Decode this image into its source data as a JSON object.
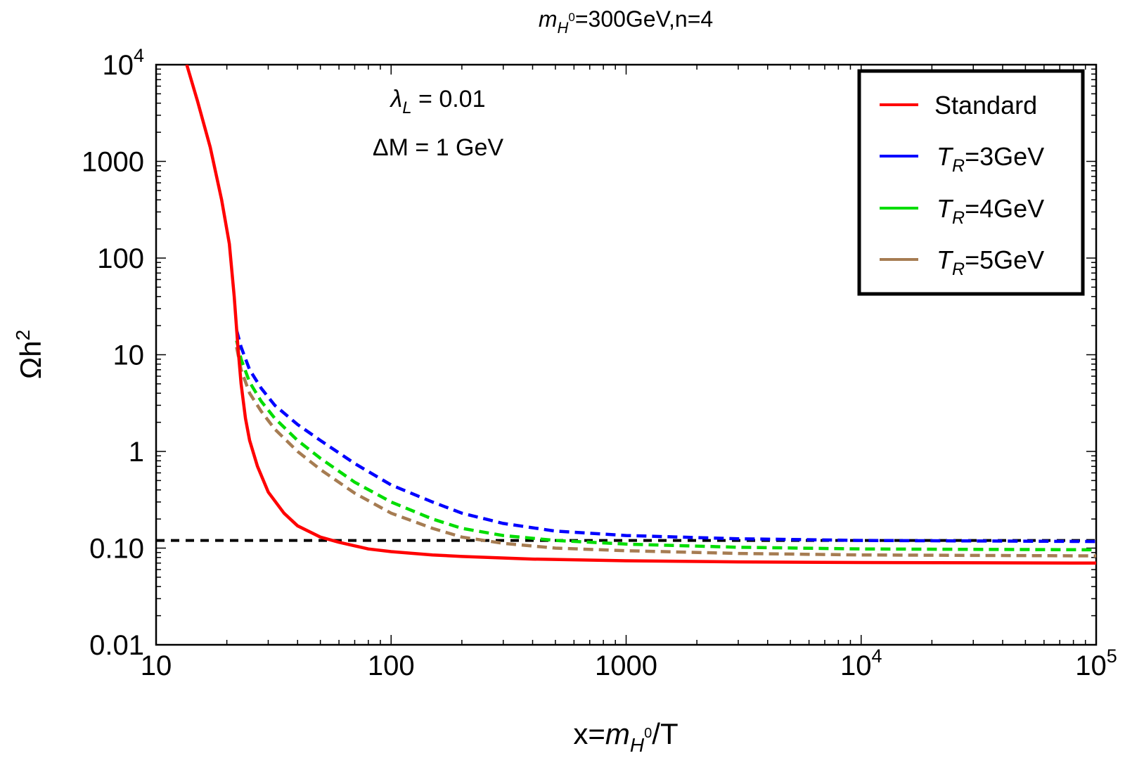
{
  "chart_data": {
    "type": "line",
    "title": {
      "prefix": "m",
      "sub": "H",
      "sup": "0",
      "rest": "=300GeV,n=4"
    },
    "xlabel": {
      "prefix": "x=",
      "m": "m",
      "sub": "H",
      "sup": "0",
      "rest": "/T"
    },
    "ylabel": {
      "base": "Ωh",
      "sup": "2"
    },
    "xscale": "log",
    "yscale": "log",
    "xlim": [
      10,
      100000
    ],
    "ylim": [
      0.01,
      10000
    ],
    "x_ticks": [
      {
        "value": 10,
        "label": "10"
      },
      {
        "value": 100,
        "label": "100"
      },
      {
        "value": 1000,
        "label": "1000"
      },
      {
        "value": 10000,
        "label": "10",
        "sup": "4"
      },
      {
        "value": 100000,
        "label": "10",
        "sup": "5"
      }
    ],
    "y_ticks": [
      {
        "value": 0.01,
        "label": "0.01"
      },
      {
        "value": 0.1,
        "label": "0.10"
      },
      {
        "value": 1,
        "label": "1"
      },
      {
        "value": 10,
        "label": "10"
      },
      {
        "value": 100,
        "label": "100"
      },
      {
        "value": 1000,
        "label": "1000"
      },
      {
        "value": 10000,
        "label": "10",
        "sup": "4"
      }
    ],
    "annotations": [
      {
        "id": "lambda",
        "sym": "λ",
        "sub": "L",
        "rest": " = 0.01"
      },
      {
        "id": "deltaM",
        "text": "ΔM = 1 GeV"
      }
    ],
    "reference_line": {
      "y": 0.12,
      "color": "#000000",
      "style": "dashed"
    },
    "legend": {
      "position": "top-right"
    },
    "series": [
      {
        "name": "Standard",
        "color": "#ff0000",
        "dashed": false,
        "points": [
          [
            13.5,
            10000
          ],
          [
            15,
            4200
          ],
          [
            17,
            1400
          ],
          [
            19,
            400
          ],
          [
            20.5,
            140
          ],
          [
            21.5,
            40
          ],
          [
            22.3,
            12
          ],
          [
            23,
            5
          ],
          [
            24,
            2.2
          ],
          [
            25,
            1.3
          ],
          [
            27,
            0.7
          ],
          [
            30,
            0.38
          ],
          [
            35,
            0.23
          ],
          [
            40,
            0.17
          ],
          [
            50,
            0.13
          ],
          [
            60,
            0.115
          ],
          [
            80,
            0.098
          ],
          [
            100,
            0.092
          ],
          [
            150,
            0.085
          ],
          [
            200,
            0.082
          ],
          [
            400,
            0.077
          ],
          [
            1000,
            0.074
          ],
          [
            3000,
            0.072
          ],
          [
            10000,
            0.071
          ],
          [
            100000,
            0.07
          ]
        ]
      },
      {
        "name": "T_R=3GeV",
        "label_base": "T",
        "label_sub": "R",
        "label_rest": "=3GeV",
        "color": "#0000ff",
        "dashed": true,
        "points": [
          [
            22,
            18
          ],
          [
            23,
            12
          ],
          [
            25,
            7
          ],
          [
            28,
            4.5
          ],
          [
            32,
            3
          ],
          [
            40,
            1.9
          ],
          [
            50,
            1.3
          ],
          [
            70,
            0.75
          ],
          [
            100,
            0.45
          ],
          [
            150,
            0.3
          ],
          [
            200,
            0.23
          ],
          [
            300,
            0.18
          ],
          [
            500,
            0.15
          ],
          [
            1000,
            0.135
          ],
          [
            3000,
            0.125
          ],
          [
            10000,
            0.12
          ],
          [
            100000,
            0.117
          ]
        ]
      },
      {
        "name": "T_R=4GeV",
        "label_base": "T",
        "label_sub": "R",
        "label_rest": "=4GeV",
        "color": "#00dd00",
        "dashed": true,
        "points": [
          [
            22,
            14
          ],
          [
            23,
            9
          ],
          [
            25,
            5.2
          ],
          [
            28,
            3.3
          ],
          [
            32,
            2.2
          ],
          [
            40,
            1.3
          ],
          [
            50,
            0.85
          ],
          [
            70,
            0.48
          ],
          [
            100,
            0.3
          ],
          [
            150,
            0.2
          ],
          [
            200,
            0.16
          ],
          [
            300,
            0.135
          ],
          [
            500,
            0.12
          ],
          [
            1000,
            0.11
          ],
          [
            3000,
            0.102
          ],
          [
            10000,
            0.098
          ],
          [
            100000,
            0.096
          ]
        ]
      },
      {
        "name": "T_R=5GeV",
        "label_base": "T",
        "label_sub": "R",
        "label_rest": "=5GeV",
        "color": "#a67c52",
        "dashed": true,
        "points": [
          [
            22,
            12
          ],
          [
            23,
            7
          ],
          [
            25,
            4
          ],
          [
            28,
            2.6
          ],
          [
            32,
            1.7
          ],
          [
            40,
            1
          ],
          [
            50,
            0.65
          ],
          [
            70,
            0.37
          ],
          [
            100,
            0.23
          ],
          [
            150,
            0.16
          ],
          [
            200,
            0.13
          ],
          [
            300,
            0.112
          ],
          [
            500,
            0.1
          ],
          [
            1000,
            0.094
          ],
          [
            3000,
            0.088
          ],
          [
            10000,
            0.085
          ],
          [
            100000,
            0.083
          ]
        ]
      }
    ]
  }
}
